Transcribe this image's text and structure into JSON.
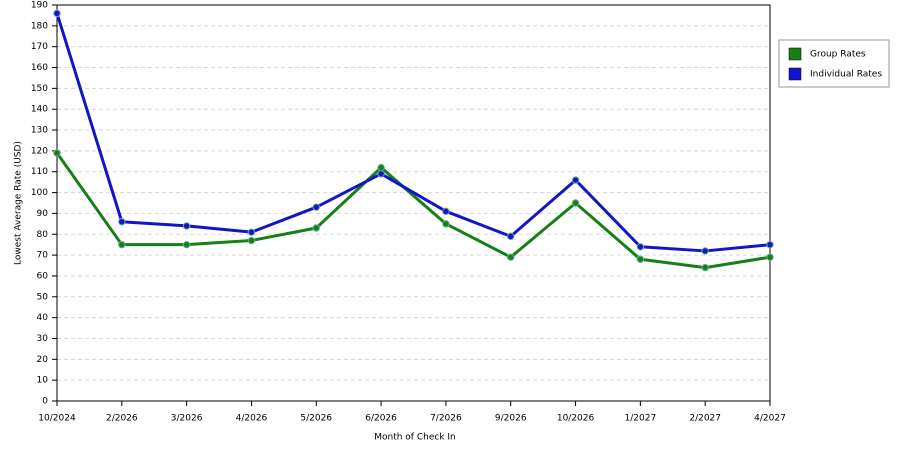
{
  "chart_data": {
    "type": "line",
    "x_label": "Month of Check In",
    "y_label": "Lowest Average Rate (USD)",
    "categories": [
      "10/2024",
      "2/2026",
      "3/2026",
      "4/2026",
      "5/2026",
      "6/2026",
      "7/2026",
      "9/2026",
      "10/2026",
      "1/2027",
      "2/2027",
      "4/2027"
    ],
    "series": [
      {
        "name": "Group Rates",
        "color": "#168016",
        "values": [
          119,
          75,
          75,
          77,
          83,
          112,
          85,
          69,
          95,
          68,
          64,
          69
        ]
      },
      {
        "name": "Individual Rates",
        "color": "#1515c8",
        "values": [
          186,
          86,
          84,
          81,
          93,
          109,
          91,
          79,
          106,
          74,
          72,
          75
        ]
      }
    ],
    "ylim": [
      0,
      190
    ],
    "yticks": [
      0,
      10,
      20,
      30,
      40,
      50,
      60,
      70,
      80,
      90,
      100,
      110,
      120,
      130,
      140,
      150,
      160,
      170,
      180,
      190
    ],
    "grid": true,
    "legend": "right"
  }
}
